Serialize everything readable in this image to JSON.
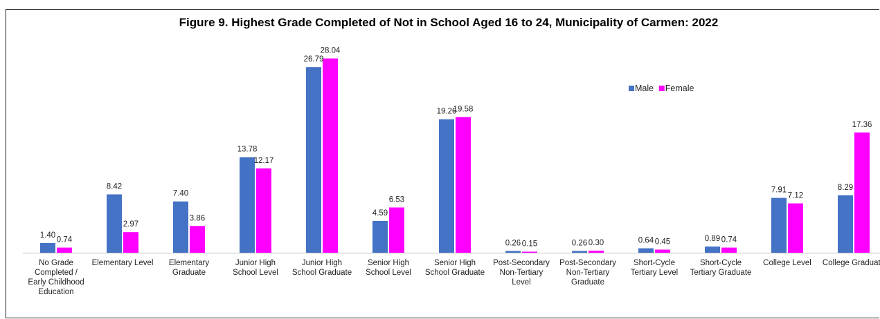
{
  "chart_data": {
    "type": "bar",
    "title": "Figure 9. Highest Grade Completed of Not in School Aged 16 to 24, Municipality of Carmen: 2022",
    "categories": [
      [
        "No Grade",
        "Completed /",
        "Early Childhood",
        "Education"
      ],
      [
        "Elementary Level"
      ],
      [
        "Elementary",
        "Graduate"
      ],
      [
        "Junior High",
        "School Level"
      ],
      [
        "Junior High",
        "School Graduate"
      ],
      [
        "Senior High",
        "School Level"
      ],
      [
        "Senior High",
        "School Graduate"
      ],
      [
        "Post-Secondary",
        "Non-Tertiary",
        "Level"
      ],
      [
        "Post-Secondary",
        "Non-Tertiary",
        "Graduate"
      ],
      [
        "Short-Cycle",
        "Tertiary Level"
      ],
      [
        "Short-Cycle",
        "Tertiary Graduate"
      ],
      [
        "College Level"
      ],
      [
        "College Graduate"
      ]
    ],
    "series": [
      {
        "name": "Male",
        "color": "#4472C4",
        "values": [
          1.4,
          8.42,
          7.4,
          13.78,
          26.79,
          4.59,
          19.26,
          0.26,
          0.26,
          0.64,
          0.89,
          7.91,
          8.29
        ],
        "labels": [
          "1.40",
          "8.42",
          "7.40",
          "13.78",
          "26.79",
          "4.59",
          "19.26",
          "0.26",
          "0.26",
          "0.64",
          "0.89",
          "7.91",
          "8.29"
        ]
      },
      {
        "name": "Female",
        "color": "#FF00FF",
        "values": [
          0.74,
          2.97,
          3.86,
          12.17,
          28.04,
          6.53,
          19.58,
          0.15,
          0.3,
          0.45,
          0.74,
          7.12,
          17.36
        ],
        "labels": [
          "0.74",
          "2.97",
          "3.86",
          "12.17",
          "28.04",
          "6.53",
          "19.58",
          "0.15",
          "0.30",
          "0.45",
          "0.74",
          "7.12",
          "17.36"
        ]
      }
    ],
    "ylim": [
      0,
      28.5
    ],
    "grid": false,
    "legend": "top-right"
  }
}
